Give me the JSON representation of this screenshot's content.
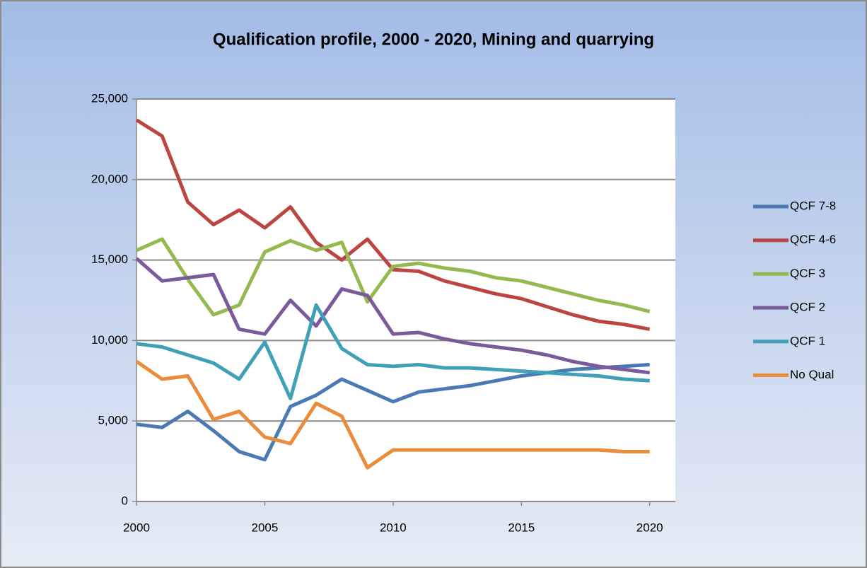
{
  "chart_data": {
    "type": "line",
    "title": "Qualification profile, 2000 - 2020, Mining and quarrying",
    "x": [
      2000,
      2001,
      2002,
      2003,
      2004,
      2005,
      2006,
      2007,
      2008,
      2009,
      2010,
      2011,
      2012,
      2013,
      2014,
      2015,
      2016,
      2017,
      2018,
      2019,
      2020
    ],
    "series": [
      {
        "name": "QCF 7-8",
        "color": "#4a7ab5",
        "values": [
          4800,
          4600,
          5600,
          4400,
          3100,
          2600,
          5900,
          6600,
          7600,
          6900,
          6200,
          6800,
          7000,
          7200,
          7500,
          7800,
          8000,
          8200,
          8300,
          8400,
          8500
        ]
      },
      {
        "name": "QCF 4-6",
        "color": "#bc4541",
        "values": [
          23700,
          22700,
          18600,
          17200,
          18100,
          17000,
          18300,
          16100,
          15000,
          16300,
          14400,
          14300,
          13700,
          13300,
          12900,
          12600,
          12100,
          11600,
          11200,
          11000,
          10700
        ]
      },
      {
        "name": "QCF 3",
        "color": "#93b94f",
        "values": [
          15600,
          16300,
          13800,
          11600,
          12200,
          15500,
          16200,
          15600,
          16100,
          12400,
          14600,
          14800,
          14500,
          14300,
          13900,
          13700,
          13300,
          12900,
          12500,
          12200,
          11800
        ]
      },
      {
        "name": "QCF 2",
        "color": "#7a5a9a",
        "values": [
          15100,
          13700,
          13900,
          14100,
          10700,
          10400,
          12500,
          10900,
          13200,
          12800,
          10400,
          10500,
          10100,
          9800,
          9600,
          9400,
          9100,
          8700,
          8400,
          8200,
          8000
        ]
      },
      {
        "name": "QCF 1",
        "color": "#3fa0b8",
        "values": [
          9800,
          9600,
          9100,
          8600,
          7600,
          9900,
          6400,
          12200,
          9500,
          8500,
          8400,
          8500,
          8300,
          8300,
          8200,
          8100,
          8000,
          7900,
          7800,
          7600,
          7500
        ]
      },
      {
        "name": "No Qual",
        "color": "#ea8c3b",
        "values": [
          8700,
          7600,
          7800,
          5100,
          5600,
          4000,
          3600,
          6100,
          5300,
          2100,
          3200,
          3200,
          3200,
          3200,
          3200,
          3200,
          3200,
          3200,
          3200,
          3100,
          3100
        ]
      }
    ],
    "xlim": [
      2000,
      2021
    ],
    "xticks": [
      2000,
      2005,
      2010,
      2015,
      2020
    ],
    "ylim": [
      0,
      25000
    ],
    "yticks": [
      0,
      {
        "value": 5000,
        "label": "5,000"
      },
      {
        "value": 10000,
        "label": "10,000"
      },
      {
        "value": 15000,
        "label": "15,000"
      },
      {
        "value": 20000,
        "label": "20,000"
      },
      {
        "value": 25000,
        "label": "25,000"
      }
    ],
    "grid": true,
    "legend": "right"
  }
}
